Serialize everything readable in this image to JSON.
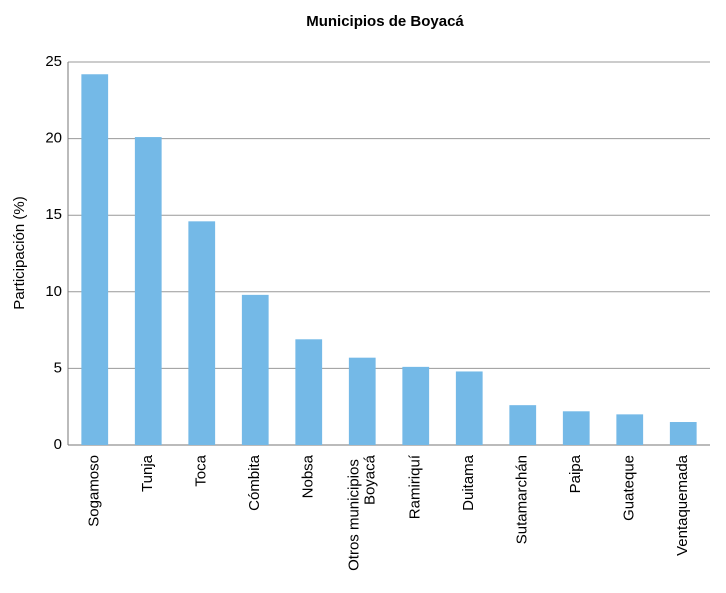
{
  "chart_data": {
    "type": "bar",
    "title": "Municipios de Boyacá",
    "y_label": "Participación (%)",
    "categories": [
      "Sogamoso",
      "Tunja",
      "Toca",
      "Cómbita",
      "Nobsa",
      "Otros municipios Boyacá",
      "Ramiriquí",
      "Duitama",
      "Sutamarchán",
      "Paipa",
      "Guateque",
      "Ventaquemada"
    ],
    "values": [
      24.2,
      20.1,
      14.6,
      9.8,
      6.9,
      5.7,
      5.1,
      4.8,
      2.6,
      2.2,
      2.0,
      1.5
    ],
    "color": "#74b9e7",
    "ylim": [
      0,
      25
    ],
    "yticks": [
      0,
      5,
      10,
      15,
      20,
      25
    ],
    "grid": true
  }
}
